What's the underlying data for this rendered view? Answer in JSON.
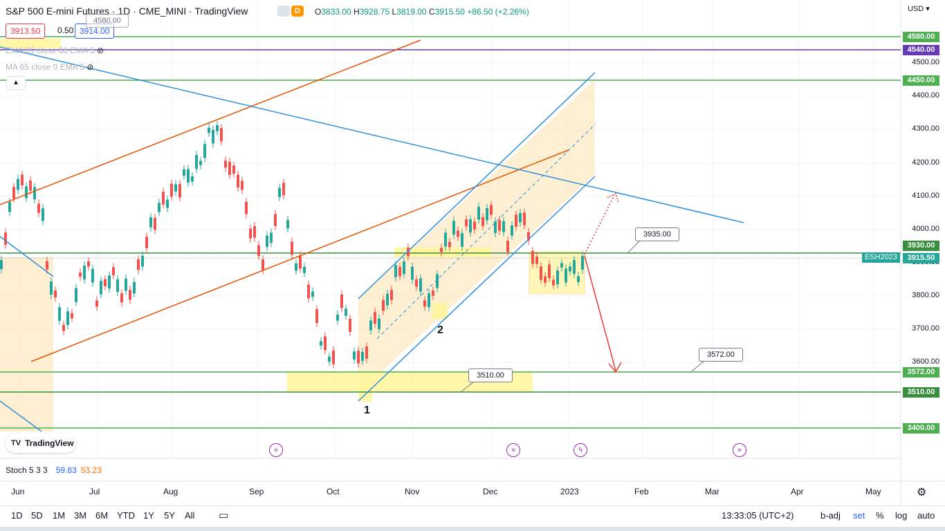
{
  "header": {
    "title": "S&P 500 E-mini Futures · 1D · CME_MINI · TradingView",
    "mode_badges": [
      "",
      "D"
    ],
    "ohlc": [
      {
        "k": "O",
        "v": "3833.00"
      },
      {
        "k": "H",
        "v": "3928.75"
      },
      {
        "k": "L",
        "v": "3819.00"
      },
      {
        "k": "C",
        "v": "3915.50"
      },
      {
        "k": "",
        "v": "+86.50 (+2.26%)"
      }
    ],
    "bid": "3913.50",
    "spread": "0.50",
    "ask": "3914.00",
    "indicators": [
      "EMA 89 close 66 EMA 5",
      "MA 65 close 0 EMA 5"
    ],
    "collapse_icon": "chevron-up-icon",
    "hidden_label": "4580.00"
  },
  "price_axis": {
    "currency": "USD",
    "labels": [
      "4500.00",
      "4400.00",
      "4300.00",
      "4200.00",
      "4100.00",
      "4000.00",
      "3900.00",
      "3800.00",
      "3700.00",
      "3600.00"
    ],
    "tags": [
      {
        "text": "4580.00",
        "color": "#4caf50"
      },
      {
        "text": "4540.00",
        "color": "#673ab7"
      },
      {
        "text": "4450.00",
        "color": "#4caf50"
      },
      {
        "text": "3930.00",
        "color": "#388e3c"
      },
      {
        "text": "3915.50",
        "color": "#26a69a"
      },
      {
        "text": "3572.00",
        "color": "#4caf50"
      },
      {
        "text": "3510.00",
        "color": "#388e3c"
      },
      {
        "text": "3400.00",
        "color": "#4caf50"
      }
    ],
    "symbol_tag": "ESH2023"
  },
  "callouts": [
    "3935.00",
    "3510.00",
    "3572.00"
  ],
  "wave_labels": [
    "1",
    "2"
  ],
  "logo": {
    "text": "TradingView",
    "icon": "tradingview-logo-icon"
  },
  "stoch": {
    "name": "Stoch 5 3 3",
    "k": "59.83",
    "d": "53.23"
  },
  "time_axis": [
    "Jun",
    "Jul",
    "Aug",
    "Sep",
    "Oct",
    "Nov",
    "Dec",
    "2023",
    "Feb",
    "Mar",
    "Apr",
    "May"
  ],
  "settings_icon": "gear-icon",
  "timeframes": [
    "1D",
    "5D",
    "1M",
    "3M",
    "6M",
    "YTD",
    "1Y",
    "5Y",
    "All"
  ],
  "range_icon": "calendar-range-icon",
  "clock": "13:33:05 (UTC+2)",
  "options": [
    {
      "label": "b-adj",
      "on": false
    },
    {
      "label": "set",
      "on": true
    },
    {
      "label": "%",
      "on": false
    },
    {
      "label": "log",
      "on": false
    },
    {
      "label": "auto",
      "on": false
    }
  ],
  "events": [
    "dividend-icon",
    "dividend-icon",
    "dividend-icon",
    "earnings-icon",
    "dividend-icon"
  ],
  "colors": {
    "up": "#26a69a",
    "down": "#ef5350",
    "channel": "#2f8fdc",
    "trend": "#e65100",
    "support": "#4caf50"
  }
}
